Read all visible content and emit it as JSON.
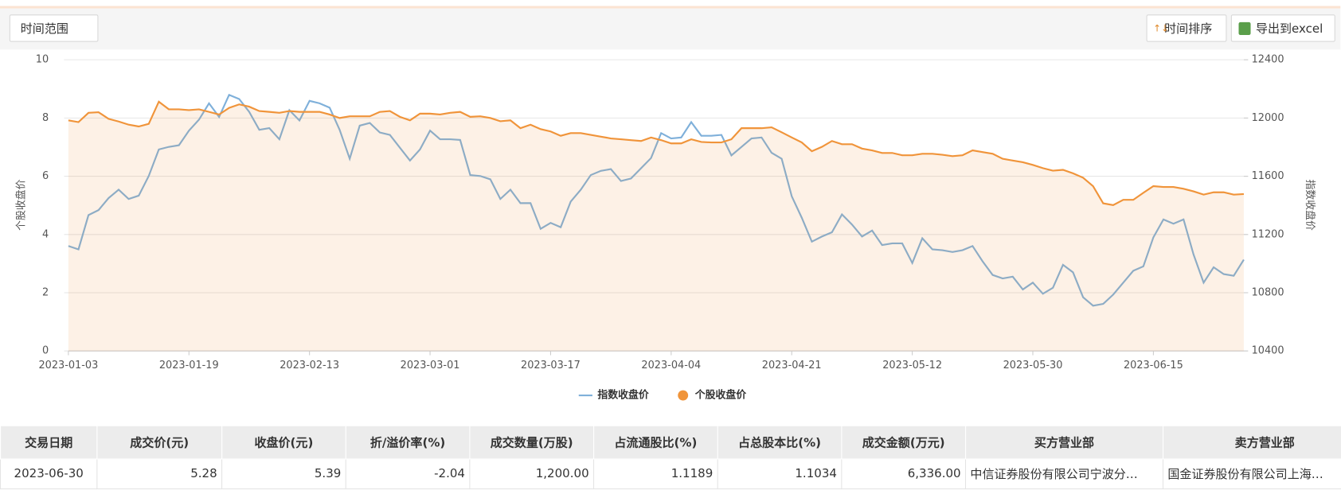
{
  "toolbar": {
    "time_range": "时间范围",
    "sort_button": "时间排序",
    "export_button": "导出到excel"
  },
  "chart_data": {
    "type": "line",
    "y_label": "个股收盘价",
    "y2_label": "指数收盘价",
    "categories": [
      "2023-01-03",
      null,
      null,
      null,
      null,
      null,
      null,
      null,
      null,
      null,
      null,
      null,
      "2023-01-19",
      null,
      null,
      null,
      null,
      null,
      null,
      null,
      null,
      null,
      null,
      null,
      "2023-02-13",
      null,
      null,
      null,
      null,
      null,
      null,
      null,
      null,
      null,
      null,
      null,
      "2023-03-01",
      null,
      null,
      null,
      null,
      null,
      null,
      null,
      null,
      null,
      null,
      null,
      "2023-03-17",
      null,
      null,
      null,
      null,
      null,
      null,
      null,
      null,
      null,
      null,
      null,
      "2023-04-04",
      null,
      null,
      null,
      null,
      null,
      null,
      null,
      null,
      null,
      null,
      null,
      "2023-04-21",
      null,
      null,
      null,
      null,
      null,
      null,
      null,
      null,
      null,
      null,
      null,
      "2023-05-12",
      null,
      null,
      null,
      null,
      null,
      null,
      null,
      null,
      null,
      null,
      null,
      "2023-05-30",
      null,
      null,
      null,
      null,
      null,
      null,
      null,
      null,
      null,
      null,
      null,
      "2023-06-15",
      null,
      null,
      null,
      null,
      null,
      null,
      null,
      null,
      null
    ],
    "series": [
      {
        "name": "指数收盘价",
        "color": "#7fb0da",
        "axis": "y2",
        "values": [
          11121,
          11098,
          11333,
          11368,
          11450,
          11508,
          11444,
          11467,
          11602,
          11784,
          11802,
          11813,
          11913,
          11989,
          12101,
          12007,
          12159,
          12130,
          12042,
          11919,
          11931,
          11854,
          12054,
          11983,
          12118,
          12101,
          12071,
          11919,
          11720,
          11948,
          11966,
          11901,
          11884,
          11796,
          11708,
          11784,
          11913,
          11854,
          11854,
          11849,
          11608,
          11602,
          11579,
          11444,
          11508,
          11415,
          11415,
          11239,
          11280,
          11250,
          11426,
          11508,
          11608,
          11637,
          11649,
          11567,
          11585,
          11655,
          11725,
          11896,
          11860,
          11866,
          11972,
          11878,
          11878,
          11884,
          11743,
          11802,
          11860,
          11866,
          11761,
          11720,
          11462,
          11315,
          11151,
          11186,
          11215,
          11338,
          11268,
          11186,
          11227,
          11127,
          11139,
          11139,
          11004,
          11174,
          11098,
          11092,
          11080,
          11092,
          11121,
          11016,
          10922,
          10898,
          10910,
          10822,
          10869,
          10793,
          10834,
          10992,
          10940,
          10769,
          10711,
          10723,
          10787,
          10869,
          10951,
          10981,
          11180,
          11303,
          11274,
          11303,
          11063,
          10869,
          10975,
          10928,
          10916,
          11027
        ]
      },
      {
        "name": "个股收盘价",
        "color": "#f0943a",
        "fill_area": true,
        "values": [
          7.92,
          7.86,
          8.18,
          8.2,
          7.97,
          7.88,
          7.77,
          7.71,
          7.8,
          8.56,
          8.3,
          8.3,
          8.27,
          8.3,
          8.21,
          8.12,
          8.35,
          8.47,
          8.39,
          8.24,
          8.21,
          8.18,
          8.24,
          8.21,
          8.21,
          8.21,
          8.12,
          8.0,
          8.06,
          8.06,
          8.06,
          8.21,
          8.24,
          8.04,
          7.92,
          8.15,
          8.15,
          8.12,
          8.18,
          8.21,
          8.04,
          8.06,
          8.0,
          7.89,
          7.92,
          7.65,
          7.77,
          7.62,
          7.54,
          7.39,
          7.48,
          7.48,
          7.42,
          7.36,
          7.3,
          7.27,
          7.24,
          7.21,
          7.33,
          7.24,
          7.13,
          7.13,
          7.27,
          7.18,
          7.16,
          7.16,
          7.27,
          7.65,
          7.65,
          7.65,
          7.68,
          7.51,
          7.33,
          7.16,
          6.86,
          7.01,
          7.21,
          7.1,
          7.1,
          6.95,
          6.89,
          6.8,
          6.8,
          6.72,
          6.72,
          6.77,
          6.77,
          6.74,
          6.69,
          6.72,
          6.89,
          6.83,
          6.77,
          6.6,
          6.54,
          6.48,
          6.39,
          6.28,
          6.19,
          6.22,
          6.1,
          5.95,
          5.66,
          5.07,
          5.01,
          5.19,
          5.19,
          5.43,
          5.66,
          5.63,
          5.63,
          5.57,
          5.48,
          5.37,
          5.45,
          5.45,
          5.37,
          5.39
        ]
      }
    ],
    "ylim": [
      0,
      10
    ],
    "yticks": [
      0,
      2,
      4,
      6,
      8,
      10
    ],
    "y2lim": [
      10400,
      12400
    ],
    "y2ticks": [
      10400,
      10800,
      11200,
      11600,
      12000,
      12400
    ],
    "grid": true,
    "legend": "bottom"
  },
  "table": {
    "columns": [
      "交易日期",
      "成交价(元)",
      "收盘价(元)",
      "折/溢价率(%)",
      "成交数量(万股)",
      "占流通股比(%)",
      "占总股本比(%)",
      "成交金额(万元)",
      "买方营业部",
      "卖方营业部"
    ],
    "rows": [
      [
        "2023-06-30",
        "5.28",
        "5.39",
        "-2.04",
        "1,200.00",
        "1.1189",
        "1.1034",
        "6,336.00",
        "中信证券股份有限公司宁波分…",
        "国金证券股份有限公司上海…"
      ]
    ]
  }
}
